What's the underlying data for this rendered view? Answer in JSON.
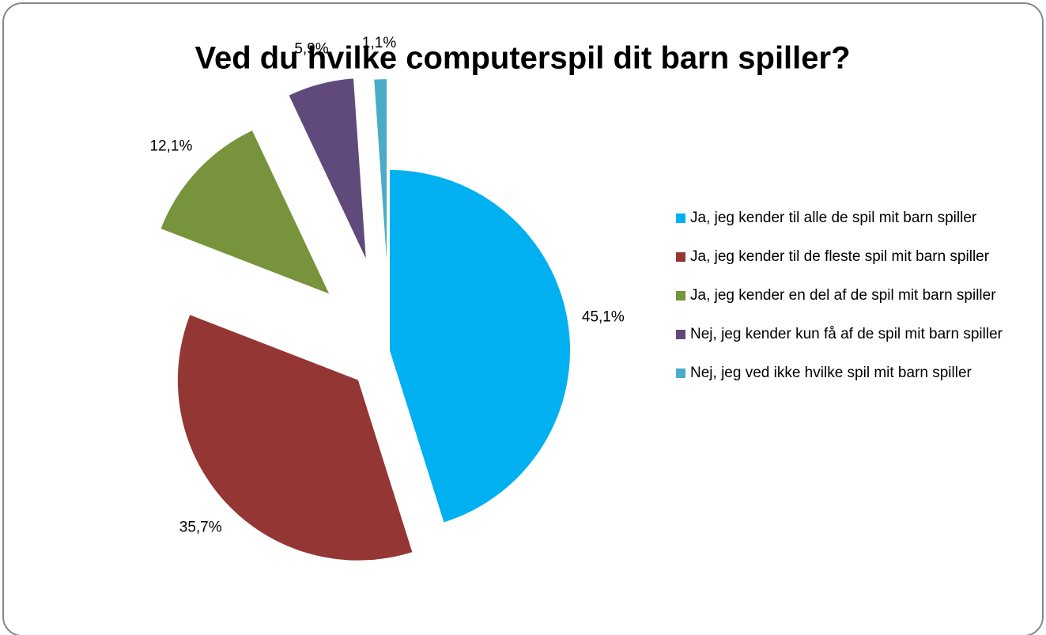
{
  "chart_data": {
    "type": "pie",
    "title": "Ved du hvilke computerspil dit barn spiller?",
    "categories": [
      "Ja, jeg kender til alle de spil mit barn spiller",
      "Ja, jeg kender til de fleste spil mit barn spiller",
      "Ja, jeg kender en del af de spil mit barn spiller",
      "Nej, jeg kender kun få af de spil mit barn spiller",
      "Nej, jeg ved ikke hvilke spil mit barn spiller"
    ],
    "values": [
      45.1,
      35.7,
      12.1,
      5.9,
      1.1
    ],
    "value_labels": [
      "45,1%",
      "35,7%",
      "12,1%",
      "5,9%",
      "1,1%"
    ],
    "colors": [
      "#00b0f0",
      "#943634",
      "#77933c",
      "#604a7b",
      "#4bacc6"
    ],
    "legend": "right"
  }
}
